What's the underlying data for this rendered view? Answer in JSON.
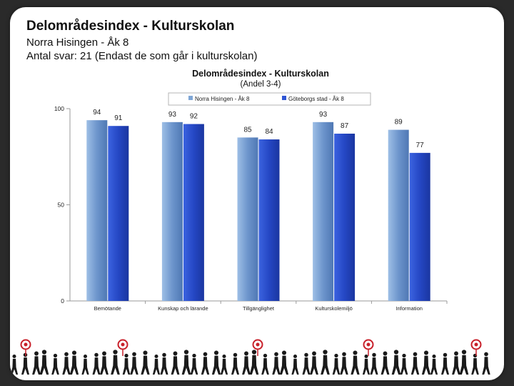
{
  "header": {
    "title": "Delområdesindex - Kulturskolan",
    "subtitle": "Norra Hisingen - Åk 8",
    "respondents": "Antal svar: 21 (Endast de som går i kulturskolan)"
  },
  "chart_data": {
    "type": "bar",
    "title": "Delområdesindex - Kulturskolan",
    "subtitle": "(Andel 3-4)",
    "categories": [
      "Bemötande",
      "Kunskap och lärande",
      "Tillgänglighet",
      "Kulturskolemiljö",
      "Information"
    ],
    "series": [
      {
        "name": "Norra Hisingen - Åk 8",
        "values": [
          94,
          93,
          85,
          93,
          89
        ],
        "color": "#7fa6d6"
      },
      {
        "name": "Göteborgs stad - Åk 8",
        "values": [
          91,
          92,
          84,
          87,
          77
        ],
        "color": "#2f55d4"
      }
    ],
    "ylim": [
      0,
      100
    ],
    "yticks": [
      0,
      50,
      100
    ],
    "legend": "top",
    "grid": false
  },
  "colors": {
    "background": "#2a2a2a",
    "slide": "#ffffff",
    "footer_silhouette": "#1a1a1a",
    "target_red": "#c8202a"
  },
  "footer": {
    "icon": "walking-people-silhouettes"
  }
}
